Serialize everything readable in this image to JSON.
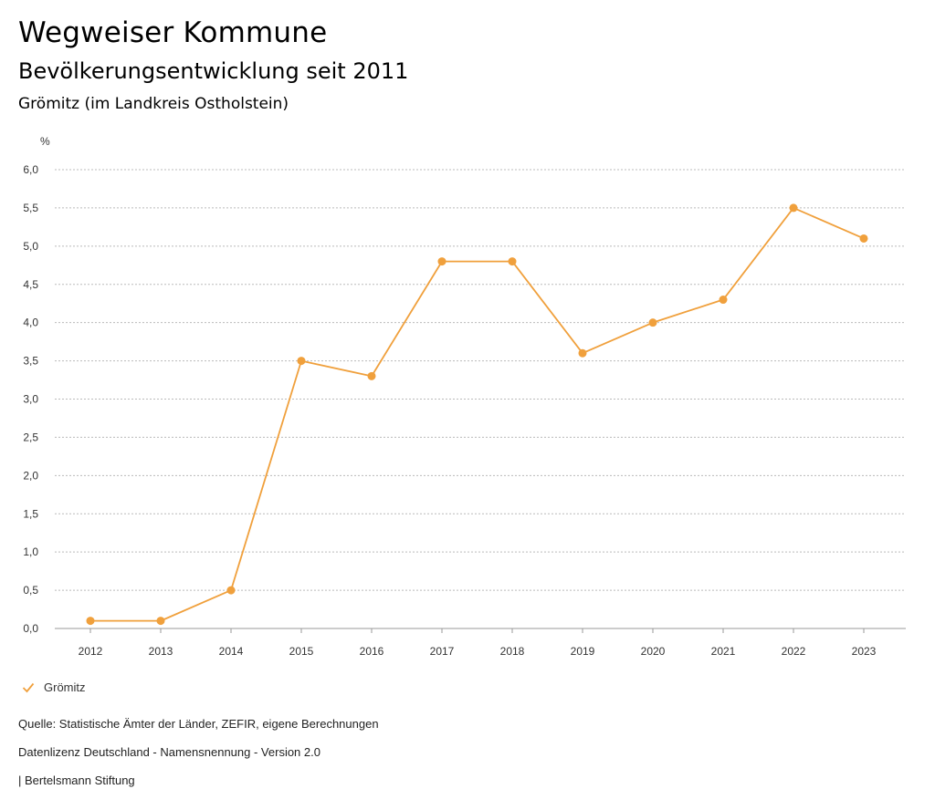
{
  "header": {
    "title": "Wegweiser Kommune",
    "subtitle": "Bevölkerungsentwicklung seit 2011",
    "region": "Grömitz (im Landkreis Ostholstein)"
  },
  "chart_data": {
    "type": "line",
    "title": "Bevölkerungsentwicklung seit 2011",
    "ylabel": "%",
    "xlabel": "",
    "categories": [
      "2012",
      "2013",
      "2014",
      "2015",
      "2016",
      "2017",
      "2018",
      "2019",
      "2020",
      "2021",
      "2022",
      "2023"
    ],
    "series": [
      {
        "name": "Grömitz",
        "values": [
          0.1,
          0.1,
          0.5,
          3.5,
          3.3,
          4.8,
          4.8,
          3.6,
          4.0,
          4.3,
          5.5,
          5.1
        ]
      }
    ],
    "ylim": [
      0,
      6
    ],
    "yticks": [
      0,
      0.5,
      1.0,
      1.5,
      2.0,
      2.5,
      3.0,
      3.5,
      4.0,
      4.5,
      5.0,
      5.5,
      6.0
    ],
    "ytick_labels": [
      "0,0",
      "0,5",
      "1,0",
      "1,5",
      "2,0",
      "2,5",
      "3,0",
      "3,5",
      "4,0",
      "4,5",
      "5,0",
      "5,5",
      "6,0"
    ],
    "grid": true,
    "legend": "bottom-left"
  },
  "colors": {
    "series": "#f0a03c",
    "grid": "#bbbbbb"
  },
  "legend": {
    "icon": "check-icon",
    "label": "Grömitz"
  },
  "footer": {
    "source": "Quelle: Statistische Ämter der Länder, ZEFIR, eigene Berechnungen",
    "license": "Datenlizenz Deutschland - Namensnennung - Version 2.0",
    "publisher": "| Bertelsmann Stiftung"
  }
}
